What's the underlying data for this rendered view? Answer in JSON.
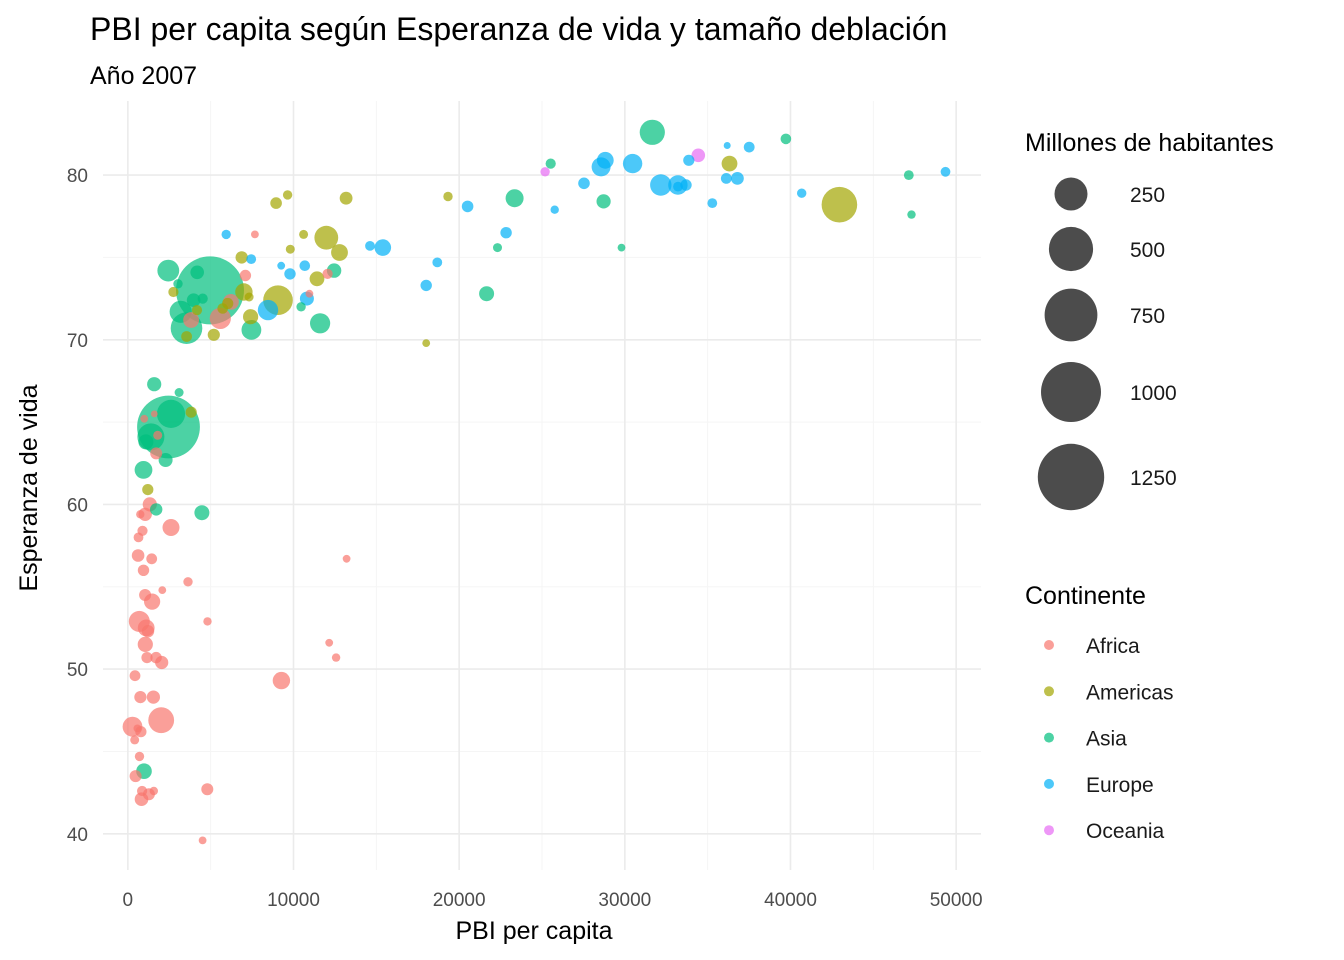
{
  "chart_data": {
    "type": "scatter",
    "title": "PBI per capita según Esperanza de vida y tamaño deblación",
    "subtitle": "Año 2007",
    "xlabel": "PBI per capita",
    "ylabel": "Esperanza de vida",
    "xlim": [
      -1500,
      51500
    ],
    "ylim": [
      37.8,
      84.5
    ],
    "x_ticks": [
      0,
      10000,
      20000,
      30000,
      40000,
      50000
    ],
    "x_tick_labels": [
      "0",
      "10000",
      "20000",
      "30000",
      "40000",
      "50000"
    ],
    "y_ticks": [
      40,
      50,
      60,
      70,
      80
    ],
    "y_tick_labels": [
      "40",
      "50",
      "60",
      "70",
      "80"
    ],
    "grid": true,
    "point_alpha": 0.7,
    "size_legend": {
      "title": "Millones de habitantes",
      "values": [
        250,
        500,
        750,
        1000,
        1250
      ],
      "labels": [
        "250",
        "500",
        "750",
        "1000",
        "1250"
      ],
      "color": "#000000"
    },
    "color_legend": {
      "title": "Continente",
      "position": "right",
      "entries": [
        {
          "name": "Africa",
          "color": "#F8766D"
        },
        {
          "name": "Americas",
          "color": "#A3A500"
        },
        {
          "name": "Asia",
          "color": "#00BF7D"
        },
        {
          "name": "Europe",
          "color": "#00B0F6"
        },
        {
          "name": "Oceania",
          "color": "#E76BF3"
        }
      ]
    },
    "series": [
      {
        "name": "Africa",
        "color": "#F8766D",
        "points": [
          [
            6223,
            72.3,
            33
          ],
          [
            4797,
            42.7,
            12
          ],
          [
            1441,
            56.7,
            8
          ],
          [
            12570,
            50.7,
            2
          ],
          [
            1217,
            52.3,
            14
          ],
          [
            430,
            49.6,
            8
          ],
          [
            2042,
            50.4,
            18
          ],
          [
            706,
            44.7,
            4
          ],
          [
            1704,
            50.7,
            10
          ],
          [
            986,
            65.2,
            1
          ],
          [
            278,
            46.5,
            65
          ],
          [
            3633,
            55.3,
            4
          ],
          [
            1545,
            48.3,
            18
          ],
          [
            2082,
            54.8,
            1
          ],
          [
            5581,
            71.3,
            80
          ],
          [
            12154,
            51.6,
            1
          ],
          [
            641,
            58.0,
            5
          ],
          [
            691,
            52.9,
            77
          ],
          [
            13206,
            56.7,
            1
          ],
          [
            753,
            59.4,
            2
          ],
          [
            1327,
            60.0,
            23
          ],
          [
            943,
            56.0,
            10
          ],
          [
            579,
            46.4,
            1
          ],
          [
            1463,
            54.1,
            35
          ],
          [
            1569,
            42.6,
            2
          ],
          [
            415,
            45.7,
            3
          ],
          [
            12057,
            74.0,
            6
          ],
          [
            1045,
            59.4,
            19
          ],
          [
            759,
            48.3,
            13
          ],
          [
            1042,
            54.5,
            12
          ],
          [
            1803,
            64.2,
            3
          ],
          [
            10957,
            72.8,
            1
          ],
          [
            3820,
            71.2,
            33
          ],
          [
            824,
            42.1,
            20
          ],
          [
            4811,
            52.9,
            2
          ],
          [
            620,
            56.9,
            15
          ],
          [
            2014,
            46.9,
            135
          ],
          [
            7670,
            76.4,
            1
          ],
          [
            785,
            46.2,
            9
          ],
          [
            1598,
            65.5,
            0.2
          ],
          [
            1712,
            63.1,
            12
          ],
          [
            863,
            42.6,
            6
          ],
          [
            1154,
            50.7,
            9
          ],
          [
            9270,
            49.3,
            44
          ],
          [
            2602,
            58.6,
            42
          ],
          [
            4513,
            39.6,
            1
          ],
          [
            1107,
            52.5,
            40
          ],
          [
            883,
            58.4,
            6
          ],
          [
            7093,
            73.9,
            10
          ],
          [
            1056,
            51.5,
            29
          ],
          [
            1271,
            42.4,
            12
          ],
          [
            470,
            43.5,
            12
          ]
        ]
      },
      {
        "name": "Americas",
        "color": "#A3A500",
        "points": [
          [
            12779,
            75.3,
            40
          ],
          [
            3822,
            65.6,
            9
          ],
          [
            9066,
            72.4,
            190
          ],
          [
            36319,
            80.7,
            33
          ],
          [
            13172,
            78.6,
            16
          ],
          [
            7007,
            72.9,
            44
          ],
          [
            9645,
            78.8,
            4
          ],
          [
            8948,
            78.3,
            11
          ],
          [
            6025,
            72.2,
            9
          ],
          [
            6873,
            75.0,
            14
          ],
          [
            5728,
            71.9,
            7
          ],
          [
            5186,
            70.3,
            13
          ],
          [
            1202,
            60.9,
            9
          ],
          [
            3548,
            70.2,
            8
          ],
          [
            7321,
            72.6,
            3
          ],
          [
            11978,
            76.2,
            108
          ],
          [
            2749,
            72.9,
            6
          ],
          [
            9809,
            75.5,
            3
          ],
          [
            4173,
            71.8,
            6
          ],
          [
            7409,
            71.4,
            29
          ],
          [
            19328,
            78.7,
            4
          ],
          [
            18009,
            69.8,
            1
          ],
          [
            42952,
            78.2,
            301
          ],
          [
            10611,
            76.4,
            3
          ],
          [
            11416,
            73.7,
            26
          ]
        ]
      },
      {
        "name": "Asia",
        "color": "#00BF7D",
        "points": [
          [
            975,
            43.8,
            32
          ],
          [
            29796,
            75.6,
            1
          ],
          [
            1391,
            64.1,
            150
          ],
          [
            1714,
            59.7,
            14
          ],
          [
            4959,
            73.0,
            1319
          ],
          [
            39725,
            82.2,
            7
          ],
          [
            2452,
            64.7,
            1110
          ],
          [
            3541,
            70.7,
            224
          ],
          [
            11606,
            71.0,
            69
          ],
          [
            4471,
            59.5,
            28
          ],
          [
            25523,
            80.7,
            6
          ],
          [
            31656,
            82.6,
            127
          ],
          [
            4519,
            72.5,
            6
          ],
          [
            1593,
            67.3,
            23
          ],
          [
            23348,
            78.6,
            49
          ],
          [
            47307,
            77.6,
            2
          ],
          [
            10461,
            72.0,
            4
          ],
          [
            12452,
            74.2,
            24
          ],
          [
            3096,
            66.8,
            3
          ],
          [
            944,
            62.1,
            47
          ],
          [
            1091,
            63.8,
            28
          ],
          [
            22316,
            75.6,
            3
          ],
          [
            2606,
            65.5,
            169
          ],
          [
            3190,
            71.7,
            91
          ],
          [
            21655,
            72.8,
            28
          ],
          [
            47143,
            80.0,
            5
          ],
          [
            3970,
            72.4,
            20
          ],
          [
            4185,
            74.1,
            20
          ],
          [
            28718,
            78.4,
            23
          ],
          [
            7458,
            70.6,
            65
          ],
          [
            2442,
            74.2,
            85
          ],
          [
            3026,
            73.4,
            4
          ],
          [
            2281,
            62.7,
            22
          ]
        ]
      },
      {
        "name": "Europe",
        "color": "#00B0F6",
        "points": [
          [
            5937,
            76.4,
            4
          ],
          [
            36126,
            79.8,
            8
          ],
          [
            33693,
            79.4,
            10
          ],
          [
            7446,
            74.9,
            5
          ],
          [
            10681,
            74.5,
            7
          ],
          [
            14619,
            75.7,
            5
          ],
          [
            22833,
            76.5,
            10
          ],
          [
            35278,
            78.3,
            5
          ],
          [
            33207,
            79.3,
            5
          ],
          [
            30470,
            80.7,
            61
          ],
          [
            32170,
            79.4,
            82
          ],
          [
            27538,
            79.5,
            11
          ],
          [
            18009,
            73.3,
            10
          ],
          [
            36181,
            81.8,
            0.3
          ],
          [
            40676,
            78.9,
            4
          ],
          [
            28570,
            80.5,
            58
          ],
          [
            9254,
            74.5,
            1
          ],
          [
            36798,
            79.8,
            16
          ],
          [
            49357,
            80.2,
            5
          ],
          [
            15390,
            75.6,
            38
          ],
          [
            20510,
            78.1,
            11
          ],
          [
            10808,
            72.5,
            22
          ],
          [
            9787,
            74.0,
            10
          ],
          [
            18678,
            74.7,
            5
          ],
          [
            25768,
            77.9,
            2
          ],
          [
            28821,
            80.9,
            40
          ],
          [
            33860,
            80.9,
            9
          ],
          [
            37506,
            81.7,
            8
          ],
          [
            8458,
            71.8,
            71
          ],
          [
            33203,
            79.4,
            61
          ]
        ]
      },
      {
        "name": "Oceania",
        "color": "#E76BF3",
        "points": [
          [
            34435,
            81.2,
            20
          ],
          [
            25185,
            80.2,
            4
          ]
        ]
      }
    ]
  }
}
